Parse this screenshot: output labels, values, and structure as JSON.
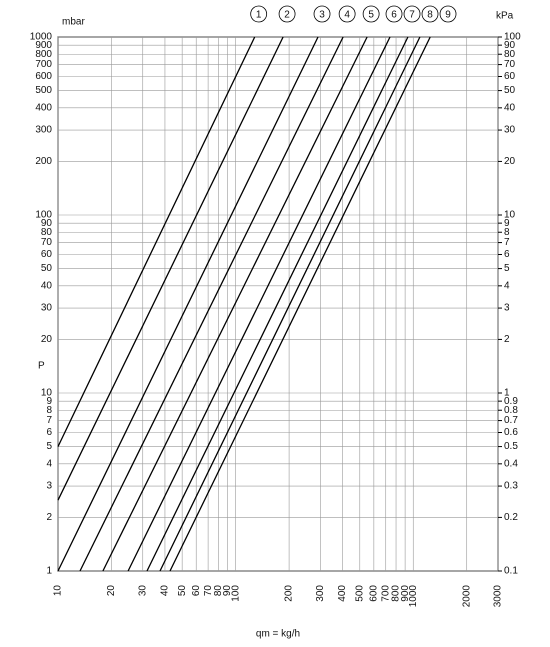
{
  "chart_data": {
    "type": "line",
    "y_label": "mbar",
    "y2_label": "kPa",
    "y_symbol": "P",
    "x_label": "qm = kg/h",
    "log_x": true,
    "log_y": true,
    "grid": true,
    "xlim": [
      10,
      3000
    ],
    "ylim": [
      1,
      1000
    ],
    "y2lim": [
      0.1,
      100
    ],
    "xticks": [
      10,
      20,
      30,
      40,
      50,
      60,
      70,
      80,
      90,
      100,
      200,
      300,
      400,
      500,
      600,
      700,
      800,
      900,
      1000,
      2000,
      3000
    ],
    "yticks": [
      1,
      2,
      3,
      4,
      5,
      6,
      7,
      8,
      9,
      10,
      20,
      30,
      40,
      50,
      60,
      70,
      80,
      90,
      100,
      200,
      300,
      400,
      500,
      600,
      700,
      800,
      900,
      1000
    ],
    "y2ticks": [
      0.1,
      0.2,
      0.3,
      0.4,
      0.5,
      0.6,
      0.7,
      0.8,
      0.9,
      1,
      2,
      3,
      4,
      5,
      6,
      7,
      8,
      9,
      10,
      20,
      30,
      40,
      50,
      60,
      70,
      80,
      90,
      100
    ],
    "series": [
      {
        "name": "1",
        "color": "#000000",
        "x": [
          10,
          128
        ],
        "values": [
          5,
          1000
        ]
      },
      {
        "name": "2",
        "color": "#000000",
        "x": [
          10,
          185
        ],
        "values": [
          2.5,
          1000
        ]
      },
      {
        "name": "3",
        "color": "#000000",
        "x": [
          10,
          291
        ],
        "values": [
          1,
          1000
        ]
      },
      {
        "name": "4",
        "color": "#000000",
        "x": [
          13.3,
          403
        ],
        "values": [
          1,
          1000
        ]
      },
      {
        "name": "5",
        "color": "#000000",
        "x": [
          17.9,
          550
        ],
        "values": [
          1,
          1000
        ]
      },
      {
        "name": "6",
        "color": "#000000",
        "x": [
          24.8,
          740
        ],
        "values": [
          1,
          1000
        ]
      },
      {
        "name": "7",
        "color": "#000000",
        "x": [
          31.7,
          933
        ],
        "values": [
          1,
          1000
        ]
      },
      {
        "name": "8",
        "color": "#000000",
        "x": [
          37.5,
          1090
        ],
        "values": [
          1,
          1000
        ]
      },
      {
        "name": "9",
        "color": "#000000",
        "x": [
          42.7,
          1245
        ],
        "values": [
          1,
          1000
        ]
      }
    ]
  }
}
